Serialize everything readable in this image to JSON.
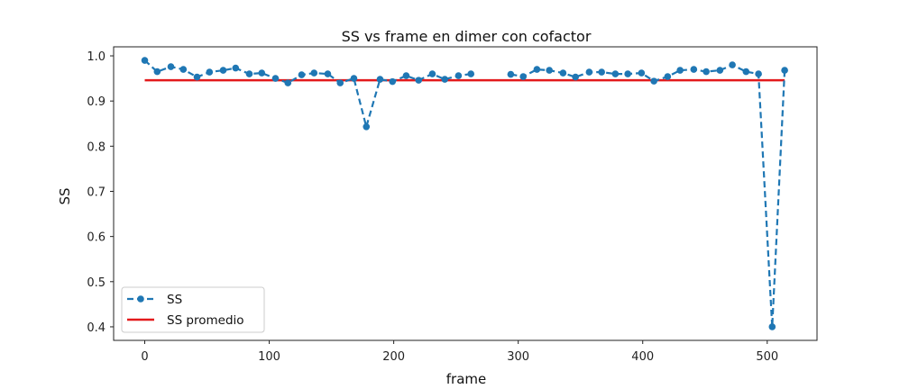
{
  "chart_data": {
    "type": "line",
    "title": "SS vs frame en dimer con cofactor",
    "xlabel": "frame",
    "ylabel": "SS",
    "xlim": [
      -25,
      540
    ],
    "ylim": [
      0.37,
      1.02
    ],
    "xticks": [
      0,
      100,
      200,
      300,
      400,
      500
    ],
    "yticks": [
      0.4,
      0.5,
      0.6,
      0.7,
      0.8,
      0.9,
      1.0
    ],
    "xtick_labels": [
      "0",
      "100",
      "200",
      "300",
      "400",
      "500"
    ],
    "ytick_labels": [
      "0.4",
      "0.5",
      "0.6",
      "0.7",
      "0.8",
      "0.9",
      "1.0"
    ],
    "grid": false,
    "legend_position": "lower-left",
    "series": [
      {
        "name": "SS",
        "style": "dashed-with-markers",
        "color": "#1f77b4",
        "x": [
          0,
          10,
          21,
          31,
          42,
          52,
          63,
          73,
          84,
          94,
          105,
          115,
          126,
          136,
          147,
          157,
          168,
          178,
          189,
          199,
          210,
          220,
          231,
          241,
          252,
          262,
          294,
          304,
          315,
          325,
          336,
          346,
          357,
          367,
          378,
          388,
          399,
          409,
          420,
          430,
          441,
          451,
          462,
          472,
          483,
          493,
          504,
          514
        ],
        "y": [
          0.99,
          0.965,
          0.976,
          0.97,
          0.953,
          0.964,
          0.968,
          0.973,
          0.96,
          0.962,
          0.95,
          0.94,
          0.958,
          0.962,
          0.96,
          0.94,
          0.95,
          0.843,
          0.948,
          0.943,
          0.956,
          0.946,
          0.96,
          0.948,
          0.956,
          0.96,
          0.959,
          0.954,
          0.97,
          0.968,
          0.962,
          0.953,
          0.964,
          0.964,
          0.96,
          0.96,
          0.962,
          0.944,
          0.954,
          0.968,
          0.97,
          0.965,
          0.968,
          0.98,
          0.965,
          0.96,
          0.4,
          0.968
        ],
        "segments": [
          [
            0,
            25
          ],
          [
            26,
            47
          ]
        ]
      },
      {
        "name": "SS promedio",
        "style": "solid",
        "color": "#e31a1c",
        "x": [
          0,
          514
        ],
        "y": [
          0.946,
          0.946
        ]
      }
    ]
  }
}
